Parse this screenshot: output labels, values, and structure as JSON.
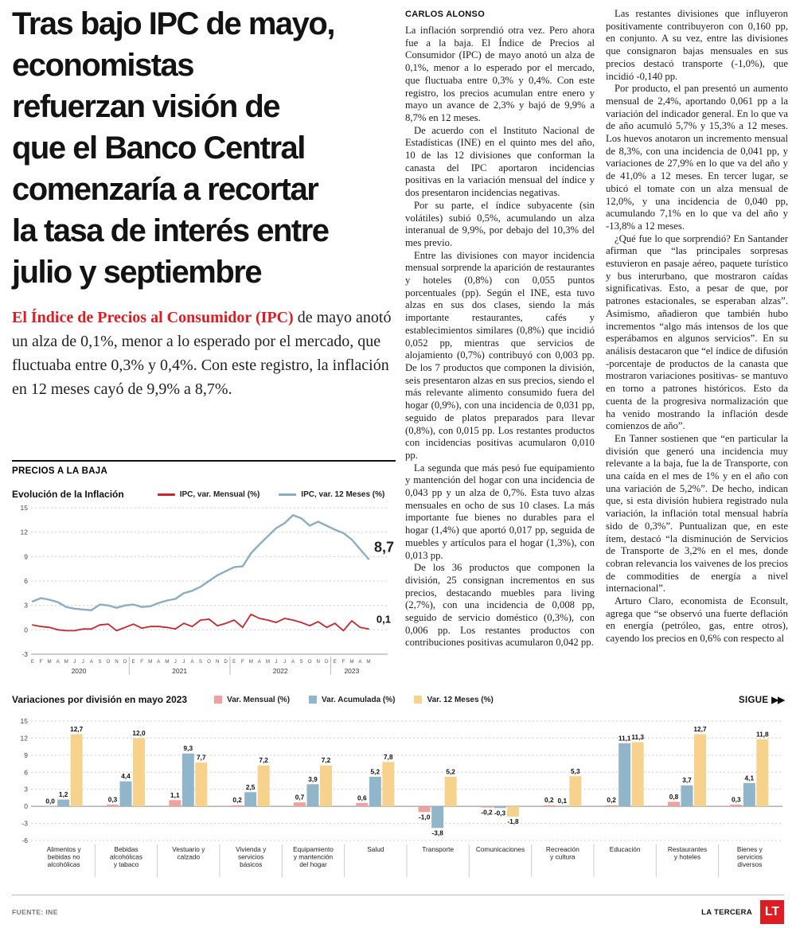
{
  "headline_lines": [
    "Tras bajo IPC de mayo,",
    "economistas",
    "refuerzan visión de",
    "que el Banco Central",
    "comenzaría a recortar",
    "la tasa de interés entre",
    "julio y septiembre"
  ],
  "lead": {
    "highlight": "El Índice de Precios al Consumidor (IPC)",
    "rest": " de mayo anotó un alza de 0,1%, menor a lo esperado por el mercado, que fluctuaba entre 0,3% y 0,4%. Con este registro, la inflación en 12 meses cayó de 9,9% a 8,7%."
  },
  "article": {
    "byline": "CARLOS ALONSO",
    "col1": [
      "La inflación sorprendió otra vez. Pero ahora fue a la baja. El Índice de Precios al Consumidor (IPC) de mayo anotó un alza de 0,1%, menor a lo esperado por el mercado, que fluctuaba entre 0,3% y 0,4%. Con este registro, los precios acumulan entre enero y mayo un avance de 2,3% y bajó de 9,9% a 8,7% en 12 meses.",
      "De acuerdo con el Instituto Nacional de Estadísticas (INE) en el quinto mes del año, 10 de las 12 divisiones que conforman la canasta del IPC aportaron incidencias positivas en la variación mensual del índice y dos presentaron incidencias negativas.",
      "Por su parte, el índice subyacente (sin volátiles) subió 0,5%, acumulando un alza interanual de 9,9%, por debajo del 10,3% del mes previo.",
      "Entre las divisiones con mayor incidencia mensual sorprende la aparición de restaurantes y hoteles (0,8%) con 0,055 puntos porcentuales (pp). Según el INE, esta tuvo alzas en sus dos clases, siendo la más importante restaurantes, cafés y establecimientos similares (0,8%) que incidió 0,052 pp, mientras que servicios de alojamiento (0,7%) contribuyó con 0,003 pp. De los 7 productos que componen la división, seis presentaron alzas en sus precios, siendo el más relevante alimento consumido fuera del hogar (0,9%), con una incidencia de 0,031 pp, seguido de platos preparados para llevar (0,8%), con 0,015 pp. Los restantes productos con incidencias positivas acumularon 0,010 pp.",
      "La segunda que más pesó fue equipamiento y mantención del hogar con una incidencia de 0,043 pp y un alza de 0,7%. Esta tuvo alzas mensuales en ocho de sus 10 clases. La más importante fue bienes no durables para el hogar (1,4%) que aportó 0,017 pp, seguida de muebles y artículos para el hogar (1,3%), con 0,013 pp.",
      "De los 36 productos que componen la división, 25 consignan incrementos en sus precios, destacando muebles para living (2,7%), con una incidencia de 0,008 pp, seguido de servicio doméstico (0,3%), con 0,006 pp. Los restantes productos con contribuciones positivas acumularon 0,042 pp."
    ],
    "col2": [
      "Las restantes divisiones que influyeron positivamente contribuyeron con 0,160 pp, en conjunto. A su vez, entre las divisiones que consignaron bajas mensuales en sus precios destacó transporte (-1,0%), que incidió -0,140 pp.",
      "Por producto, el pan presentó un aumento mensual de 2,4%, aportando 0,061 pp a la variación del indicador general. En lo que va de año acumuló 5,7% y 15,3% a 12 meses. Los huevos anotaron un incremento mensual de 8,3%, con una incidencia de 0,041 pp, y variaciones de 27,9% en lo que va del año y de 41,0% a 12 meses. En tercer lugar, se ubicó el tomate con un alza mensual de 12,0%, y una incidencia de 0,040 pp, acumulando 7,1% en lo que va del año y -13,8% a 12 meses.",
      "¿Qué fue lo que sorprendió? En Santander afirman que “las principales sorpresas estuvieron en pasaje aéreo, paquete turístico y bus interurbano, que mostraron caídas significativas. Esto, a pesar de que, por patrones estacionales, se esperaban alzas”. Asimismo, añadieron que también hubo incrementos “algo más intensos de los que esperábamos en algunos servicios”. En su análisis destacaron que “el índice de difusión -porcentaje de productos de la canasta que mostraron variaciones positivas- se mantuvo en torno a patrones históricos. Esto da cuenta de la progresiva normalización que ha venido mostrando la inflación desde comienzos de año”.",
      "En Tanner sostienen que “en particular la división que generó una incidencia muy relevante a la baja, fue la de Transporte, con una caída en el mes de 1% y en el año con una variación de 5,2%”. De hecho, indican que, si esta división hubiera registrado nula variación, la inflación total mensual habría sido de 0,3%”. Puntualizan que, en este ítem, destacó “la disminución de Servicios de Transporte de 3,2% en el mes, donde cobran relevancia los vaivenes de los precios de commodities de energía a nivel internacional”.",
      "Arturo Claro, economista de Econsult, agrega que “se observó una fuerte deflación en energía (petróleo, gas, entre otros), cayendo los precios en 0,6% con respecto al"
    ]
  },
  "section": {
    "kicker": "PRECIOS A LA BAJA",
    "sigue": "SIGUE",
    "sigue_arrows": "▶▶"
  },
  "footer": {
    "source": "FUENTE: INE",
    "brand": "LA TERCERA",
    "logo": "LT"
  },
  "chart_data": [
    {
      "type": "line",
      "title": "Evolución de la Inflación",
      "ylim": [
        -3,
        15
      ],
      "yticks": [
        15,
        12,
        9,
        6,
        3,
        0,
        -3
      ],
      "grid": true,
      "legend_position": "top",
      "x_months": [
        "E",
        "F",
        "M",
        "A",
        "M",
        "J",
        "J",
        "A",
        "S",
        "O",
        "N",
        "D",
        "E",
        "F",
        "M",
        "A",
        "M",
        "J",
        "J",
        "A",
        "S",
        "O",
        "N",
        "D",
        "E",
        "F",
        "M",
        "A",
        "M",
        "J",
        "J",
        "A",
        "S",
        "O",
        "N",
        "D",
        "E",
        "F",
        "M",
        "A",
        "M"
      ],
      "year_groups": [
        {
          "label": "2020",
          "from": 0,
          "to": 11
        },
        {
          "label": "2021",
          "from": 12,
          "to": 23
        },
        {
          "label": "2022",
          "from": 24,
          "to": 35
        },
        {
          "label": "2023",
          "from": 36,
          "to": 40
        }
      ],
      "series": [
        {
          "name": "IPC, var. Mensual  (%)",
          "color": "#c9252c",
          "end_label": "0,1",
          "values": [
            0.6,
            0.4,
            0.3,
            0.0,
            -0.1,
            -0.1,
            0.1,
            0.1,
            0.6,
            0.7,
            -0.1,
            0.3,
            0.7,
            0.2,
            0.4,
            0.4,
            0.3,
            0.1,
            0.8,
            0.4,
            1.2,
            1.3,
            0.5,
            0.8,
            1.2,
            0.3,
            1.9,
            1.4,
            1.2,
            0.9,
            1.4,
            1.2,
            0.9,
            0.5,
            1.0,
            0.3,
            0.8,
            -0.1,
            1.1,
            0.3,
            0.1
          ]
        },
        {
          "name": "IPC, var. 12 Meses  (%)",
          "color": "#8aadc0",
          "end_label": "8,7",
          "values": [
            3.5,
            3.9,
            3.7,
            3.4,
            2.8,
            2.6,
            2.5,
            2.4,
            3.1,
            3.0,
            2.7,
            3.0,
            3.1,
            2.8,
            2.9,
            3.3,
            3.6,
            3.8,
            4.5,
            4.8,
            5.3,
            6.0,
            6.7,
            7.2,
            7.7,
            7.8,
            9.4,
            10.5,
            11.5,
            12.5,
            13.1,
            14.1,
            13.7,
            12.8,
            13.3,
            12.8,
            12.3,
            11.9,
            11.1,
            9.9,
            8.7
          ]
        }
      ]
    },
    {
      "type": "bar",
      "title": "Variaciones por división en mayo 2023",
      "ylim": [
        -6,
        15
      ],
      "yticks": [
        15,
        12,
        9,
        6,
        3,
        0,
        -3,
        -6
      ],
      "grid": true,
      "legend_position": "top",
      "categories": [
        [
          "Alimentos y",
          "bebidas no",
          "alcohólicas"
        ],
        [
          "Bebidas",
          "alcohólicas",
          "y tabaco"
        ],
        [
          "Vestuario y",
          "calzado"
        ],
        [
          "Vivienda y",
          "servicios",
          "básicos"
        ],
        [
          "Equipamiento",
          "y mantención",
          "del hogar"
        ],
        [
          "Salud"
        ],
        [
          "Transporte"
        ],
        [
          "Comunicaciones"
        ],
        [
          "Recreación",
          "y cultura"
        ],
        [
          "Educación"
        ],
        [
          "Restaurantes",
          "y hoteles"
        ],
        [
          "Bienes y",
          "servicios",
          "diversos"
        ]
      ],
      "series": [
        {
          "name": "Var. Mensual  (%)",
          "color": "#efa29d",
          "values": [
            "0,0",
            "0,3",
            "1,1",
            "0,2",
            "0,7",
            "0,6",
            "-1,0",
            "-0,2",
            "0,2",
            "0,2",
            "0,8",
            "0,3"
          ]
        },
        {
          "name": "Var. Acumulada  (%)",
          "color": "#92b6c9",
          "values": [
            "1,2",
            "4,4",
            "9,3",
            "2,5",
            "3,9",
            "5,2",
            "-3,8",
            "-0,3",
            "0,1",
            "11,1",
            "3,7",
            "4,1"
          ]
        },
        {
          "name": "Var. 12 Meses  (%)",
          "color": "#f7d28c",
          "values": [
            "12,7",
            "12,0",
            "7,7",
            "7,2",
            "7,2",
            "7,8",
            "5,2",
            "-1,8",
            "5,3",
            "11,3",
            "12,7",
            "11,8"
          ]
        }
      ]
    }
  ]
}
